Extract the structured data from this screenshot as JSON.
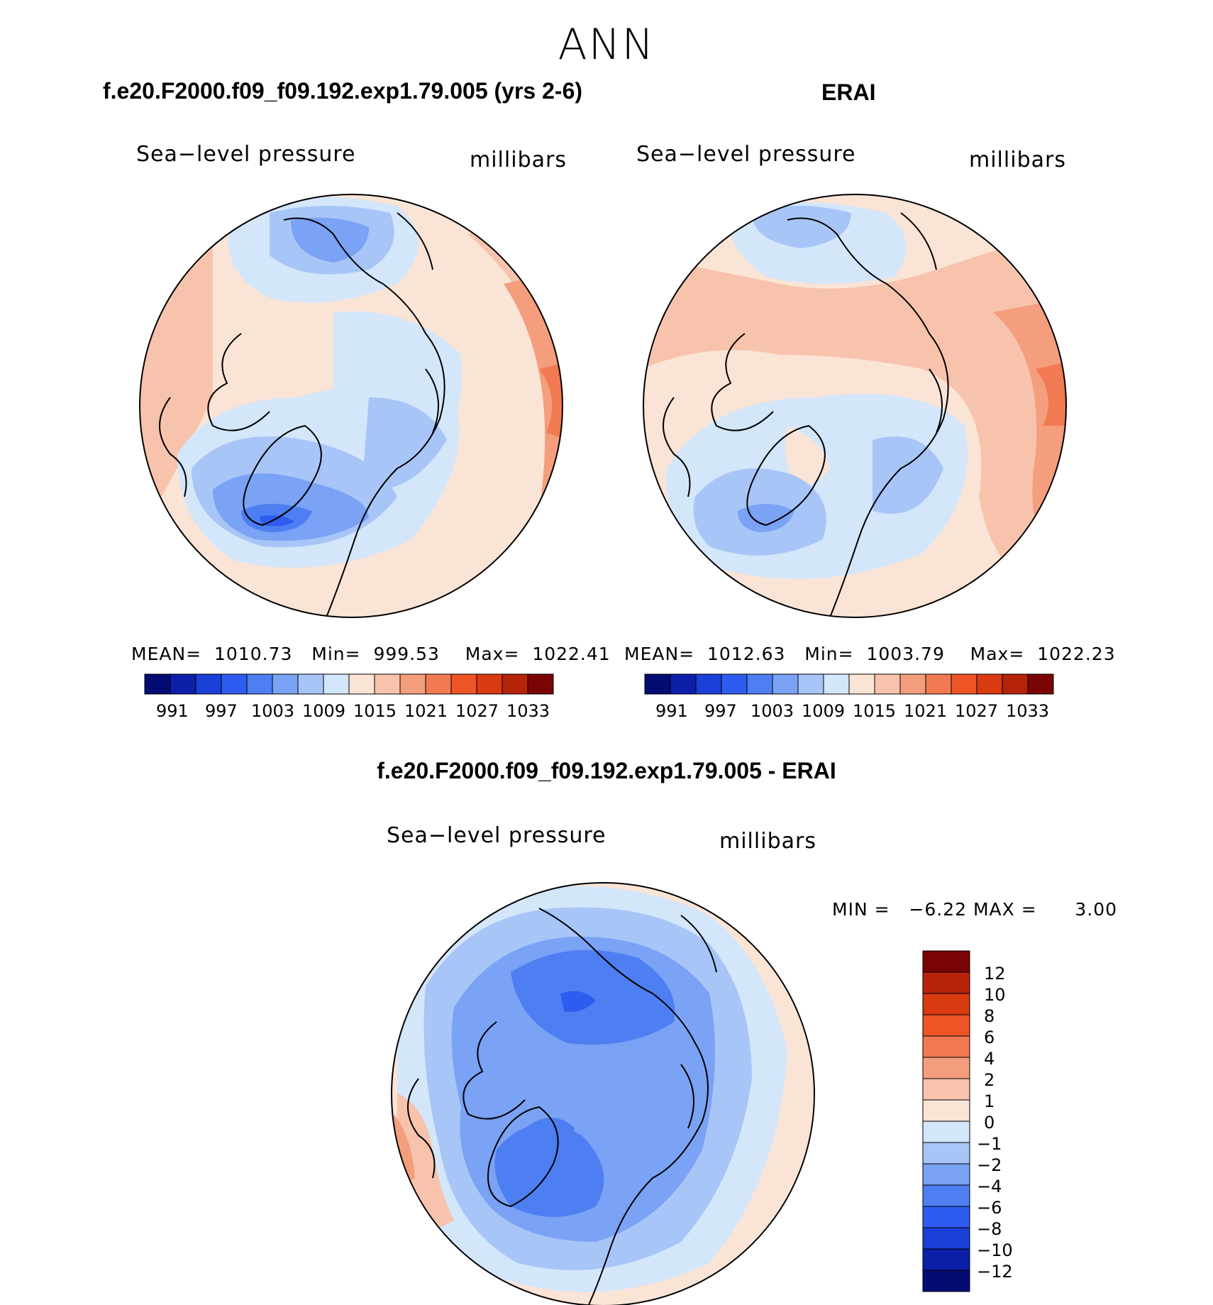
{
  "header": {
    "title": "ANN"
  },
  "panels": [
    {
      "title": "f.e20.F2000.f09_f09.192.exp1.79.005 (yrs 2-6)",
      "variable": "Sea−level pressure",
      "units": "millibars",
      "stats": {
        "mean_label": "MEAN=",
        "mean": "1010.73",
        "min_label": "Min=",
        "min": "999.53",
        "max_label": "Max=",
        "max": "1022.41"
      }
    },
    {
      "title": "ERAI",
      "variable": "Sea−level pressure",
      "units": "millibars",
      "stats": {
        "mean_label": "MEAN=",
        "mean": "1012.63",
        "min_label": "Min=",
        "min": "1003.79",
        "max_label": "Max=",
        "max": "1022.23"
      }
    },
    {
      "title": "f.e20.F2000.f09_f09.192.exp1.79.005 - ERAI",
      "variable": "Sea−level pressure",
      "units": "millibars",
      "stats": {
        "min_label": "MIN =",
        "min": "−6.22",
        "max_label": "MAX =",
        "max": "3.00"
      }
    }
  ],
  "colorbars": {
    "pressure": {
      "labels": [
        "991",
        "997",
        "1003",
        "1009",
        "1015",
        "1021",
        "1027",
        "1033"
      ],
      "colors": [
        "#030c72",
        "#0b1fa9",
        "#1b3fd9",
        "#2f5cf0",
        "#4d7ff2",
        "#7aa2f5",
        "#a8c5f7",
        "#d4e6fa",
        "#fae4d6",
        "#f7c3ad",
        "#f49e7e",
        "#f27a52",
        "#ef5426",
        "#d93a0f",
        "#b52309",
        "#7b0404"
      ]
    },
    "difference": {
      "labels": [
        "12",
        "10",
        "8",
        "6",
        "4",
        "2",
        "1",
        "0",
        "−1",
        "−2",
        "−4",
        "−6",
        "−8",
        "−10",
        "−12"
      ],
      "colors": [
        "#7b0404",
        "#b52309",
        "#d93a0f",
        "#ef5426",
        "#f27a52",
        "#f49e7e",
        "#f7c3ad",
        "#fae4d6",
        "#d4e6fa",
        "#a8c5f7",
        "#7aa2f5",
        "#4d7ff2",
        "#2f5cf0",
        "#1b3fd9",
        "#0b1fa9",
        "#030c72"
      ]
    }
  },
  "maps": {
    "projection": "north-polar-stereographic",
    "field": "sea-level-pressure",
    "coastline_color": "#000000"
  }
}
